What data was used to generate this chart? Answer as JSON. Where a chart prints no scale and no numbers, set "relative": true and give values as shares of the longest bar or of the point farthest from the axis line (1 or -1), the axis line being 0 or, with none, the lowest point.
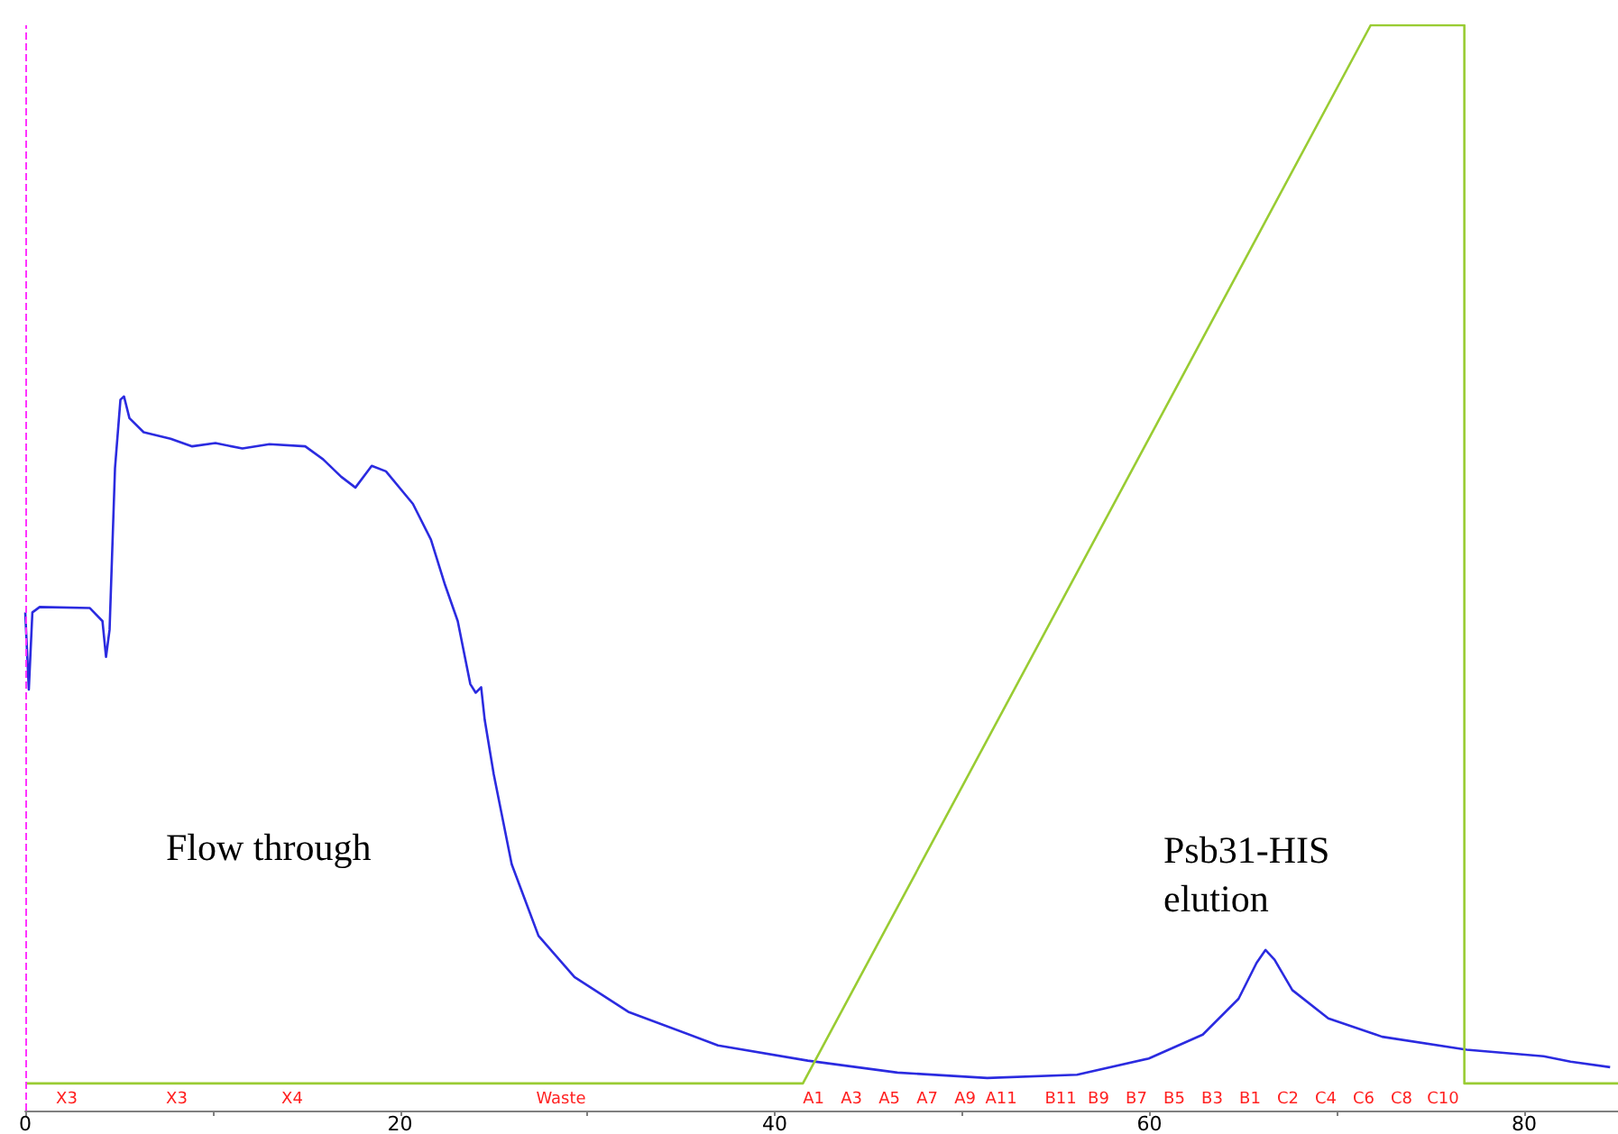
{
  "chart_data": {
    "type": "line",
    "relative": true,
    "xlim": [
      0,
      85
    ],
    "xticks": [
      0,
      {
        "value": 10,
        "label": null
      },
      20,
      {
        "value": 30,
        "label": null
      },
      40,
      {
        "value": 50,
        "label": null
      },
      60,
      {
        "value": 70,
        "label": null
      },
      80
    ],
    "tick_labels": "x",
    "marker": "none",
    "line_style": "solid",
    "series": [
      {
        "color": "#2b2be0",
        "x": [
          0,
          0.19,
          0.38,
          0.77,
          3.45,
          4.12,
          4.31,
          4.5,
          4.79,
          5.08,
          5.27,
          5.56,
          6.32,
          7.76,
          8.91,
          10.15,
          11.59,
          13.03,
          14.94,
          15.9,
          16.86,
          17.62,
          18.49,
          19.25,
          20.69,
          21.65,
          22.41,
          23.08,
          23.75,
          24.04,
          24.33,
          24.52,
          25.0,
          25.96,
          27.39,
          29.31,
          32.18,
          36.97,
          41.76,
          46.55,
          51.34,
          56.13,
          59.96,
          62.84,
          64.75,
          65.71,
          66.19,
          66.67,
          67.62,
          69.54,
          72.41,
          76.92,
          81.03,
          82.47,
          84.58
        ],
        "values": [
          0.459,
          0.388,
          0.459,
          0.464,
          0.463,
          0.451,
          0.418,
          0.443,
          0.592,
          0.655,
          0.658,
          0.638,
          0.625,
          0.619,
          0.612,
          0.615,
          0.61,
          0.614,
          0.612,
          0.6,
          0.584,
          0.574,
          0.594,
          0.589,
          0.559,
          0.526,
          0.484,
          0.451,
          0.393,
          0.385,
          0.39,
          0.36,
          0.31,
          0.227,
          0.161,
          0.123,
          0.091,
          0.06,
          0.046,
          0.035,
          0.03,
          0.033,
          0.048,
          0.07,
          0.103,
          0.136,
          0.148,
          0.139,
          0.111,
          0.085,
          0.068,
          0.056,
          0.05,
          0.045,
          0.04
        ]
      },
      {
        "color": "#99cc33",
        "x": [
          0,
          41.5,
          71.8,
          76.8,
          76.8,
          85
        ],
        "values": [
          0.025,
          0.025,
          1,
          1,
          0.025,
          0.025
        ]
      }
    ],
    "ref_lines": [
      {
        "axis": "x",
        "value": 0,
        "color": "#ff33ff",
        "line_style": "dashed"
      }
    ],
    "annotations": [
      "Flow through",
      "Psb31-HIS\nelution",
      "X3",
      "X3",
      "X4",
      "Waste",
      "A1",
      "A3",
      "A5",
      "A7",
      "A9",
      "A11",
      "B11",
      "B9",
      "B7",
      "B5",
      "B3",
      "B1",
      "C2",
      "C4",
      "C6",
      "C8",
      "C10"
    ]
  }
}
